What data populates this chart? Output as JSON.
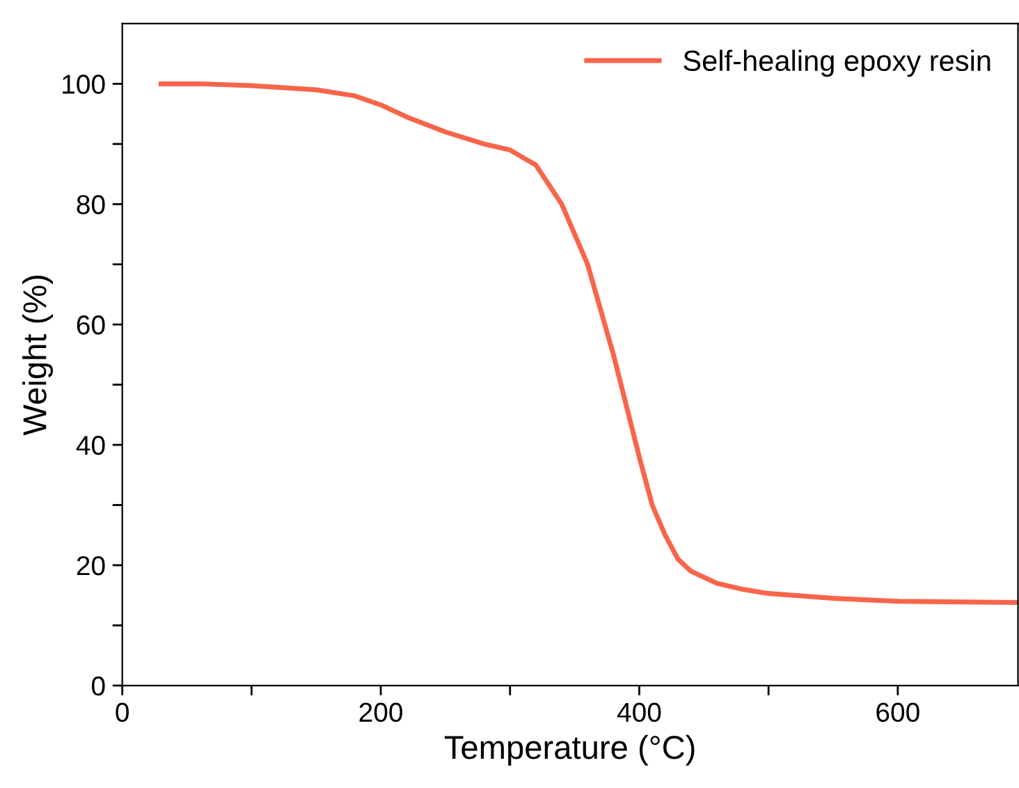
{
  "chart_data": {
    "type": "line",
    "xlabel": "Temperature (°C)",
    "ylabel": "Weight (%)",
    "x": [
      30,
      60,
      100,
      150,
      180,
      200,
      220,
      250,
      280,
      300,
      320,
      340,
      360,
      380,
      400,
      410,
      420,
      430,
      440,
      460,
      480,
      500,
      550,
      600,
      650,
      693
    ],
    "series": [
      {
        "name": "Self-healing epoxy resin",
        "color": "#f8654a",
        "values": [
          100,
          100,
          99.7,
          99,
          98,
          96.5,
          94.5,
          92,
          90,
          89,
          86.5,
          80,
          70,
          55,
          38,
          30,
          25,
          21,
          19,
          17,
          16,
          15.3,
          14.5,
          14,
          13.9,
          13.8
        ]
      }
    ],
    "xlim": [
      0,
      693
    ],
    "ylim": [
      0,
      110
    ],
    "xticks": [
      0,
      {
        "value": 100,
        "label": null
      },
      200,
      {
        "value": 300,
        "label": null
      },
      400,
      {
        "value": 500,
        "label": null
      },
      600
    ],
    "yticks": [
      0,
      {
        "value": 10,
        "label": null
      },
      20,
      {
        "value": 30,
        "label": null
      },
      40,
      {
        "value": 50,
        "label": null
      },
      60,
      {
        "value": 70,
        "label": null
      },
      80,
      {
        "value": 90,
        "label": null
      },
      100
    ],
    "grid": false,
    "legend": "top right",
    "marker": "none",
    "line_style": "solid"
  }
}
